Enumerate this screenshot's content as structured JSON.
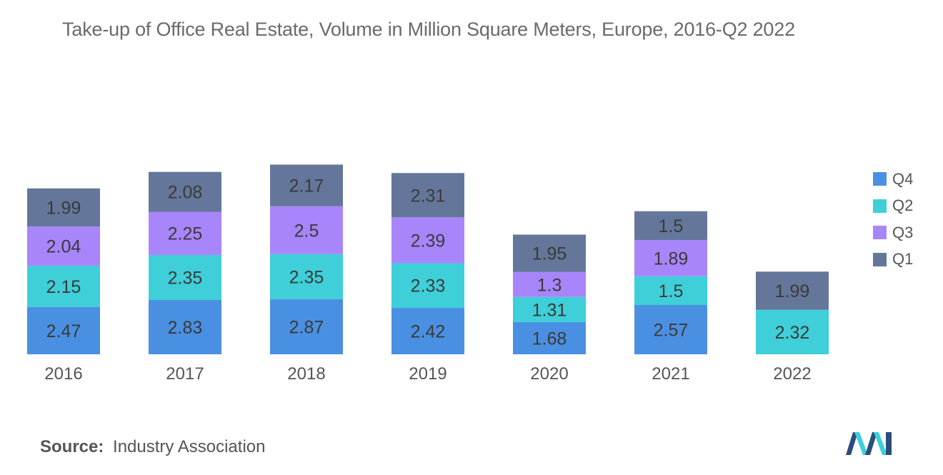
{
  "chart_data": {
    "type": "bar",
    "stacked": true,
    "title": "Take-up of Office Real Estate, Volume in Million Square Meters, Europe, 2016-Q2 2022",
    "categories": [
      "2016",
      "2017",
      "2018",
      "2019",
      "2020",
      "2021",
      "2022"
    ],
    "series": [
      {
        "name": "Q4",
        "color": "#4a90e2",
        "values": [
          2.47,
          2.83,
          2.87,
          2.42,
          1.68,
          2.57,
          null
        ]
      },
      {
        "name": "Q2",
        "color": "#3ecfd8",
        "values": [
          2.15,
          2.35,
          2.35,
          2.33,
          1.31,
          1.5,
          2.32
        ]
      },
      {
        "name": "Q3",
        "color": "#a985fb",
        "values": [
          2.04,
          2.25,
          2.5,
          2.39,
          1.3,
          1.89,
          null
        ]
      },
      {
        "name": "Q1",
        "color": "#64779a",
        "values": [
          1.99,
          2.08,
          2.17,
          2.31,
          1.95,
          1.5,
          1.99
        ]
      }
    ],
    "xlabel": "",
    "ylabel": "",
    "ylim": [
      0,
      10
    ],
    "grid": false,
    "legend_position": "right"
  },
  "source": {
    "label": "Source:",
    "text": "Industry Association"
  },
  "logo": {
    "name": "mordor-intelligence-logo-icon",
    "colors": [
      "#2a4d7a",
      "#3ecfd8"
    ]
  }
}
